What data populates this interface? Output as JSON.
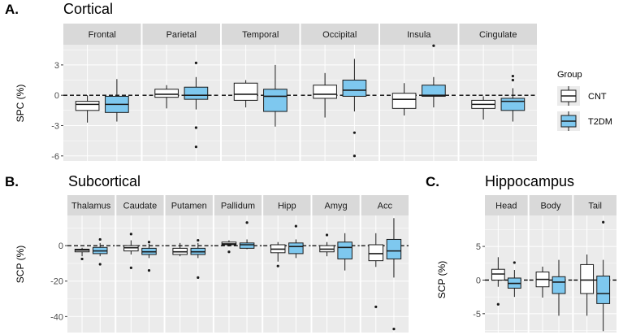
{
  "colors": {
    "panel_bg": "#ebebeb",
    "strip_bg": "#d9d9d9",
    "grid": "#ffffff",
    "cnt_fill": "#ffffff",
    "t2dm_fill": "#7ec8ef",
    "outline": "#1a1a1a",
    "text": "#000000",
    "axis_text": "#4d4d4d"
  },
  "legend": {
    "title": "Group",
    "items": [
      {
        "name": "CNT",
        "color": "#ffffff"
      },
      {
        "name": "T2DM",
        "color": "#7ec8ef"
      }
    ]
  },
  "chart_data": [
    {
      "type": "boxplot",
      "panel_letter": "A.",
      "title": "Cortical",
      "ylabel": "SPC (%)",
      "ylim": [
        -6.5,
        5.0
      ],
      "yticks": [
        -6,
        -3,
        0,
        3
      ],
      "ytick_labels": [
        "-6",
        "-3",
        "0",
        "3"
      ],
      "reference_line": 0,
      "facets": [
        {
          "label": "Frontal",
          "series": [
            {
              "group": "CNT",
              "min": -2.7,
              "q1": -1.5,
              "median": -0.9,
              "q3": -0.6,
              "max": 0.0,
              "outliers": []
            },
            {
              "group": "T2DM",
              "min": -2.6,
              "q1": -1.7,
              "median": -0.9,
              "q3": -0.1,
              "max": 1.6,
              "outliers": []
            }
          ]
        },
        {
          "label": "Parietal",
          "series": [
            {
              "group": "CNT",
              "min": -1.3,
              "q1": -0.2,
              "median": 0.1,
              "q3": 0.6,
              "max": 1.0,
              "outliers": []
            },
            {
              "group": "T2DM",
              "min": -1.4,
              "q1": -0.4,
              "median": 0.0,
              "q3": 0.8,
              "max": 1.8,
              "outliers": [
                3.2,
                -3.2,
                -5.1
              ]
            }
          ]
        },
        {
          "label": "Temporal",
          "series": [
            {
              "group": "CNT",
              "min": -1.2,
              "q1": -0.5,
              "median": 0.1,
              "q3": 1.2,
              "max": 1.5,
              "outliers": []
            },
            {
              "group": "T2DM",
              "min": -3.1,
              "q1": -1.6,
              "median": -0.1,
              "q3": 0.6,
              "max": 3.0,
              "outliers": []
            }
          ]
        },
        {
          "label": "Occipital",
          "series": [
            {
              "group": "CNT",
              "min": -2.2,
              "q1": -0.3,
              "median": 0.1,
              "q3": 1.0,
              "max": 2.2,
              "outliers": []
            },
            {
              "group": "T2DM",
              "min": -1.6,
              "q1": -0.1,
              "median": 0.5,
              "q3": 1.5,
              "max": 3.6,
              "outliers": [
                -3.7,
                -6.0
              ]
            }
          ]
        },
        {
          "label": "Insula",
          "series": [
            {
              "group": "CNT",
              "min": -2.0,
              "q1": -1.3,
              "median": -0.4,
              "q3": 0.2,
              "max": 1.2,
              "outliers": []
            },
            {
              "group": "T2DM",
              "min": -1.2,
              "q1": -0.1,
              "median": 0.0,
              "q3": 1.0,
              "max": 1.8,
              "outliers": [
                4.9
              ]
            }
          ]
        },
        {
          "label": "Cingulate",
          "series": [
            {
              "group": "CNT",
              "min": -2.4,
              "q1": -1.3,
              "median": -0.9,
              "q3": -0.5,
              "max": -0.1,
              "outliers": []
            },
            {
              "group": "T2DM",
              "min": -2.6,
              "q1": -1.5,
              "median": -0.6,
              "q3": -0.3,
              "max": 0.7,
              "outliers": [
                1.5,
                1.9
              ]
            }
          ]
        }
      ]
    },
    {
      "type": "boxplot",
      "panel_letter": "B.",
      "title": "Subcortical",
      "ylabel": "SCP (%)",
      "ylim": [
        -49,
        17
      ],
      "yticks": [
        -40,
        -20,
        0
      ],
      "ytick_labels": [
        "-40",
        "-20",
        "0"
      ],
      "reference_line": 0,
      "facets": [
        {
          "label": "Thalamus",
          "series": [
            {
              "group": "CNT",
              "min": -6.0,
              "q1": -3.5,
              "median": -2.5,
              "q3": -2.0,
              "max": -1.2,
              "outliers": [
                -7.5
              ]
            },
            {
              "group": "T2DM",
              "min": -6.0,
              "q1": -4.5,
              "median": -3.0,
              "q3": -1.0,
              "max": 1.5,
              "outliers": [
                3.5,
                -10.5
              ]
            }
          ]
        },
        {
          "label": "Caudate",
          "series": [
            {
              "group": "CNT",
              "min": -5.0,
              "q1": -3.0,
              "median": -1.2,
              "q3": 0.0,
              "max": 3.0,
              "outliers": [
                6.5,
                -12.5
              ]
            },
            {
              "group": "T2DM",
              "min": -7.0,
              "q1": -5.0,
              "median": -3.5,
              "q3": -1.5,
              "max": 1.0,
              "outliers": [
                2.0,
                -14.0
              ]
            }
          ]
        },
        {
          "label": "Putamen",
          "series": [
            {
              "group": "CNT",
              "min": -6.0,
              "q1": -5.0,
              "median": -3.5,
              "q3": -1.5,
              "max": 1.5,
              "outliers": []
            },
            {
              "group": "T2DM",
              "min": -7.0,
              "q1": -5.0,
              "median": -3.5,
              "q3": -1.5,
              "max": 1.5,
              "outliers": [
                3.0,
                -18.0
              ]
            }
          ]
        },
        {
          "label": "Pallidum",
          "series": [
            {
              "group": "CNT",
              "min": -0.5,
              "q1": 0.5,
              "median": 1.0,
              "q3": 2.0,
              "max": 3.0,
              "outliers": [
                -3.5
              ]
            },
            {
              "group": "T2DM",
              "min": -2.0,
              "q1": -1.5,
              "median": 0.5,
              "q3": 1.5,
              "max": 3.5,
              "outliers": [
                13.0
              ]
            }
          ]
        },
        {
          "label": "Hipp",
          "series": [
            {
              "group": "CNT",
              "min": -9.0,
              "q1": -4.0,
              "median": -2.0,
              "q3": 0.5,
              "max": 2.0,
              "outliers": [
                -11.5
              ]
            },
            {
              "group": "T2DM",
              "min": -7.0,
              "q1": -4.5,
              "median": -0.5,
              "q3": 1.5,
              "max": 3.5,
              "outliers": [
                11.0
              ]
            }
          ]
        },
        {
          "label": "Amyg",
          "series": [
            {
              "group": "CNT",
              "min": -6.0,
              "q1": -3.5,
              "median": -2.0,
              "q3": 0.0,
              "max": 2.0,
              "outliers": [
                6.0
              ]
            },
            {
              "group": "T2DM",
              "min": -14.0,
              "q1": -7.5,
              "median": -1.0,
              "q3": 2.0,
              "max": 7.0,
              "outliers": []
            }
          ]
        },
        {
          "label": "Acc",
          "series": [
            {
              "group": "CNT",
              "min": -12.0,
              "q1": -8.5,
              "median": -4.5,
              "q3": 0.5,
              "max": 7.0,
              "outliers": [
                -34.5
              ]
            },
            {
              "group": "T2DM",
              "min": -18.0,
              "q1": -7.5,
              "median": -3.0,
              "q3": 3.5,
              "max": 15.5,
              "outliers": [
                -47.0
              ]
            }
          ]
        }
      ]
    },
    {
      "type": "boxplot",
      "panel_letter": "C.",
      "title": "Hippocampus",
      "ylabel": "SCP (%)",
      "ylim": [
        -7.8,
        9.6
      ],
      "yticks": [
        -5,
        0,
        5
      ],
      "ytick_labels": [
        "-5",
        "0",
        "5"
      ],
      "reference_line": 0,
      "facets": [
        {
          "label": "Head",
          "series": [
            {
              "group": "CNT",
              "min": -1.0,
              "q1": 0.0,
              "median": 0.9,
              "q3": 1.6,
              "max": 3.4,
              "outliers": [
                -3.6
              ]
            },
            {
              "group": "T2DM",
              "min": -2.5,
              "q1": -1.2,
              "median": -0.5,
              "q3": 0.3,
              "max": 1.5,
              "outliers": [
                2.6
              ]
            }
          ]
        },
        {
          "label": "Body",
          "series": [
            {
              "group": "CNT",
              "min": -2.6,
              "q1": -1.0,
              "median": 0.1,
              "q3": 1.2,
              "max": 2.0,
              "outliers": []
            },
            {
              "group": "T2DM",
              "min": -5.3,
              "q1": -2.0,
              "median": -0.3,
              "q3": 0.5,
              "max": 3.0,
              "outliers": []
            }
          ]
        },
        {
          "label": "Tail",
          "series": [
            {
              "group": "CNT",
              "min": -5.3,
              "q1": -2.0,
              "median": 0.0,
              "q3": 2.3,
              "max": 3.8,
              "outliers": []
            },
            {
              "group": "T2DM",
              "min": -7.6,
              "q1": -3.5,
              "median": -2.0,
              "q3": 0.6,
              "max": 3.0,
              "outliers": [
                8.6
              ]
            }
          ]
        }
      ]
    }
  ]
}
